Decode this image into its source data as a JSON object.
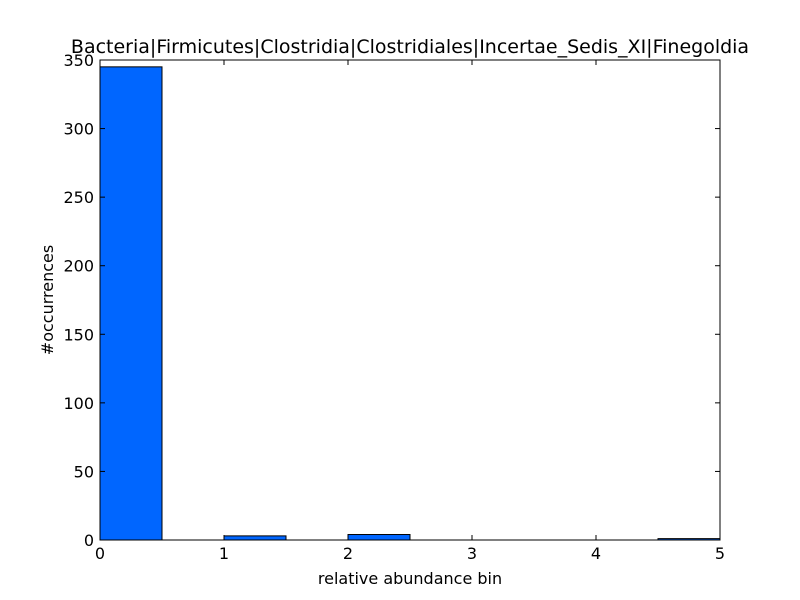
{
  "chart_data": {
    "type": "bar",
    "title": "Bacteria|Firmicutes|Clostridia|Clostridiales|Incertae_Sedis_XI|Finegoldia",
    "xlabel": "relative abundance bin",
    "ylabel": "#occurrences",
    "xlim": [
      0,
      5
    ],
    "ylim": [
      0,
      350
    ],
    "xticks": [
      "0",
      "1",
      "2",
      "3",
      "4",
      "5"
    ],
    "yticks": [
      "0",
      "50",
      "100",
      "150",
      "200",
      "250",
      "300",
      "350"
    ],
    "bins": [
      {
        "x0": 0.0,
        "x1": 0.5,
        "value": 345
      },
      {
        "x0": 1.0,
        "x1": 1.5,
        "value": 3
      },
      {
        "x0": 2.0,
        "x1": 2.5,
        "value": 4
      },
      {
        "x0": 4.5,
        "x1": 5.0,
        "value": 1
      }
    ],
    "bar_color": "#0066ff",
    "grid": false
  }
}
